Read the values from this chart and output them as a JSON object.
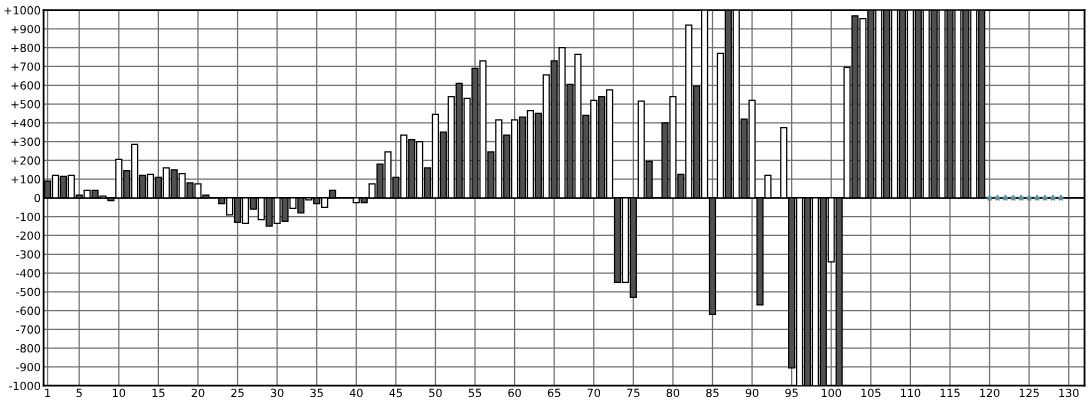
{
  "chart_data": {
    "type": "bar",
    "x": [
      1,
      2,
      3,
      4,
      5,
      6,
      7,
      8,
      9,
      10,
      11,
      12,
      13,
      14,
      15,
      16,
      17,
      18,
      19,
      20,
      21,
      22,
      23,
      24,
      25,
      26,
      27,
      28,
      29,
      30,
      31,
      32,
      33,
      34,
      35,
      36,
      37,
      38,
      39,
      40,
      41,
      42,
      43,
      44,
      45,
      46,
      47,
      48,
      49,
      50,
      51,
      52,
      53,
      54,
      55,
      56,
      57,
      58,
      59,
      60,
      61,
      62,
      63,
      64,
      65,
      66,
      67,
      68,
      69,
      70,
      71,
      72,
      73,
      74,
      75,
      76,
      77,
      78,
      79,
      80,
      81,
      82,
      83,
      84,
      85,
      86,
      87,
      88,
      89,
      90,
      91,
      92,
      93,
      94,
      95,
      96,
      97,
      98,
      99,
      100,
      101,
      102,
      103,
      104,
      105,
      106,
      107,
      108,
      109,
      110,
      111,
      112,
      113,
      114,
      115,
      116,
      117,
      118,
      119
    ],
    "series": [
      {
        "values": [
          90,
          120,
          115,
          120,
          15,
          40,
          40,
          10,
          -15,
          205,
          145,
          285,
          120,
          125,
          110,
          160,
          150,
          130,
          80,
          75,
          15,
          null,
          -30,
          -90,
          -130,
          -135,
          -60,
          -115,
          -150,
          -135,
          -125,
          -55,
          -80,
          -10,
          -30,
          -50,
          40,
          null,
          null,
          -25,
          -25,
          75,
          180,
          245,
          110,
          335,
          310,
          300,
          160,
          445,
          350,
          540,
          610,
          530,
          690,
          730,
          245,
          415,
          335,
          415,
          430,
          465,
          450,
          655,
          730,
          800,
          605,
          765,
          440,
          520,
          540,
          575,
          -450,
          -450,
          -530,
          515,
          195,
          null,
          400,
          540,
          125,
          920,
          595,
          1000,
          -620,
          770,
          1000,
          1000,
          420,
          520,
          -570,
          120,
          null,
          375,
          -905,
          -1000,
          -1000,
          -1000,
          -1000,
          -340,
          -1000,
          695,
          970,
          955,
          1000,
          1000,
          1000,
          1000,
          1000,
          1000,
          1000,
          1000,
          1000,
          1000,
          1000,
          1000,
          1000,
          1000,
          1000
        ],
        "colors": [
          "#505050",
          "#ffffff",
          "#505050",
          "#ffffff",
          "#505050",
          "#ffffff",
          "#505050",
          "#ffffff",
          "#505050",
          "#ffffff",
          "#505050",
          "#ffffff",
          "#505050",
          "#ffffff",
          "#505050",
          "#ffffff",
          "#505050",
          "#ffffff",
          "#505050",
          "#ffffff",
          "#505050",
          "#505050",
          "#505050",
          "#ffffff",
          "#505050",
          "#ffffff",
          "#505050",
          "#ffffff",
          "#505050",
          "#ffffff",
          "#505050",
          "#ffffff",
          "#505050",
          "#ffffff",
          "#505050",
          "#ffffff",
          "#505050",
          "#505050",
          "#505050",
          "#ffffff",
          "#505050",
          "#ffffff",
          "#505050",
          "#ffffff",
          "#505050",
          "#ffffff",
          "#505050",
          "#ffffff",
          "#505050",
          "#ffffff",
          "#505050",
          "#ffffff",
          "#505050",
          "#ffffff",
          "#505050",
          "#ffffff",
          "#505050",
          "#ffffff",
          "#505050",
          "#ffffff",
          "#505050",
          "#ffffff",
          "#505050",
          "#ffffff",
          "#505050",
          "#ffffff",
          "#505050",
          "#ffffff",
          "#505050",
          "#ffffff",
          "#505050",
          "#ffffff",
          "#505050",
          "#ffffff",
          "#505050",
          "#ffffff",
          "#505050",
          "#505050",
          "#505050",
          "#ffffff",
          "#505050",
          "#ffffff",
          "#505050",
          "#ffffff",
          "#505050",
          "#ffffff",
          "#505050",
          "#ffffff",
          "#505050",
          "#ffffff",
          "#505050",
          "#ffffff",
          "#505050",
          "#ffffff",
          "#505050",
          "#ffffff",
          "#505050",
          "#ffffff",
          "#505050",
          "#ffffff",
          "#505050",
          "#ffffff",
          "#505050",
          "#ffffff",
          "#505050",
          "#ffffff",
          "#505050",
          "#ffffff",
          "#505050",
          "#ffffff",
          "#505050",
          "#ffffff",
          "#505050",
          "#ffffff",
          "#505050",
          "#ffffff",
          "#505050",
          "#ffffff",
          "#505050"
        ]
      },
      {
        "type": "scatter",
        "x": [
          120,
          121,
          122,
          123,
          124,
          125,
          126,
          127,
          128,
          129
        ],
        "values": [
          0,
          0,
          0,
          0,
          0,
          0,
          0,
          0,
          0,
          0
        ],
        "color": "#5f8fa0",
        "marker": "star"
      }
    ],
    "xlim": [
      0.5,
      132
    ],
    "xticks": [
      1,
      5,
      10,
      15,
      20,
      25,
      30,
      35,
      40,
      45,
      50,
      55,
      60,
      65,
      70,
      75,
      80,
      85,
      90,
      95,
      100,
      105,
      110,
      115,
      120,
      125,
      130
    ],
    "ylim": [
      -1000,
      1000
    ],
    "yticks": [
      {
        "value": 1000,
        "label": "+1000"
      },
      {
        "value": 900,
        "label": "+900"
      },
      {
        "value": 800,
        "label": "+800"
      },
      {
        "value": 700,
        "label": "+700"
      },
      {
        "value": 600,
        "label": "+600"
      },
      {
        "value": 500,
        "label": "+500"
      },
      {
        "value": 400,
        "label": "+400"
      },
      {
        "value": 300,
        "label": "+300"
      },
      {
        "value": 200,
        "label": "+200"
      },
      {
        "value": 100,
        "label": "+100"
      },
      0,
      -100,
      -200,
      -300,
      -400,
      -500,
      -600,
      -700,
      -800,
      -900,
      -1000
    ],
    "ref_lines": [
      {
        "axis": "y",
        "value": 0,
        "color": "#000000"
      }
    ],
    "grid": true
  }
}
